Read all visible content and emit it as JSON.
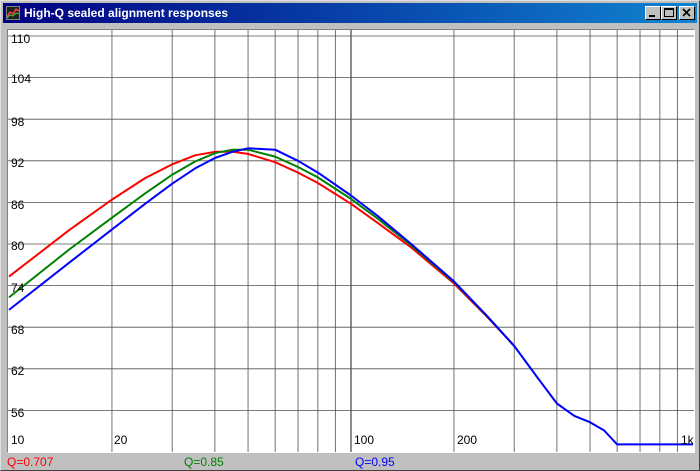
{
  "window": {
    "title": "High-Q sealed alignment responses",
    "icon": "graph-app-icon",
    "buttons": [
      "minimize",
      "maximize",
      "close"
    ]
  },
  "colors": {
    "titlebar_start": "#000080",
    "titlebar_end": "#1084d0",
    "series_q0707": "#ff0000",
    "series_q085": "#008000",
    "series_q095": "#0000ff"
  },
  "chart_data": {
    "type": "line",
    "title": "High-Q sealed alignment responses",
    "xlabel": "",
    "ylabel": "",
    "xscale": "log",
    "xlim": [
      10,
      1000
    ],
    "ylim": [
      50,
      110
    ],
    "grid": true,
    "legend_position": "bottom",
    "yticks": [
      "110",
      "104",
      "98",
      "92",
      "86",
      "80",
      "74",
      "68",
      "62",
      "56"
    ],
    "xticks": [
      "10",
      "20",
      "100",
      "200",
      "1k"
    ],
    "series": [
      {
        "name": "Q=0.707",
        "color": "#ff0000",
        "x": [
          10,
          15,
          20,
          25,
          30,
          35,
          40,
          45,
          50,
          60,
          70,
          80,
          100,
          120,
          150,
          200,
          250,
          300
        ],
        "y": [
          75.3,
          82.0,
          86.4,
          89.5,
          91.5,
          92.8,
          93.3,
          93.3,
          93.0,
          91.8,
          90.3,
          88.8,
          85.8,
          83.0,
          79.5,
          74.3,
          69.5,
          65.3
        ]
      },
      {
        "name": "Q=0.85",
        "color": "#008000",
        "x": [
          10,
          15,
          20,
          25,
          30,
          35,
          40,
          45,
          50,
          60,
          70,
          80,
          100,
          120,
          150,
          200,
          250,
          300
        ],
        "y": [
          72.3,
          79.2,
          83.8,
          87.3,
          90.0,
          91.9,
          93.1,
          93.6,
          93.6,
          92.6,
          91.1,
          89.6,
          86.5,
          83.6,
          79.8,
          74.5,
          69.6,
          65.3
        ]
      },
      {
        "name": "Q=0.95",
        "color": "#0000ff",
        "x": [
          10,
          15,
          20,
          25,
          30,
          35,
          40,
          45,
          50,
          60,
          70,
          80,
          100,
          120,
          150,
          200,
          250,
          300,
          350,
          400,
          450,
          500,
          550,
          600,
          1000
        ],
        "y": [
          70.5,
          77.3,
          82.1,
          85.8,
          88.7,
          90.9,
          92.4,
          93.3,
          93.8,
          93.6,
          92.0,
          90.3,
          87.0,
          84.0,
          80.0,
          74.6,
          69.6,
          65.3,
          60.8,
          57.0,
          55.2,
          54.3,
          53.1,
          51.1,
          51.1
        ]
      }
    ]
  }
}
